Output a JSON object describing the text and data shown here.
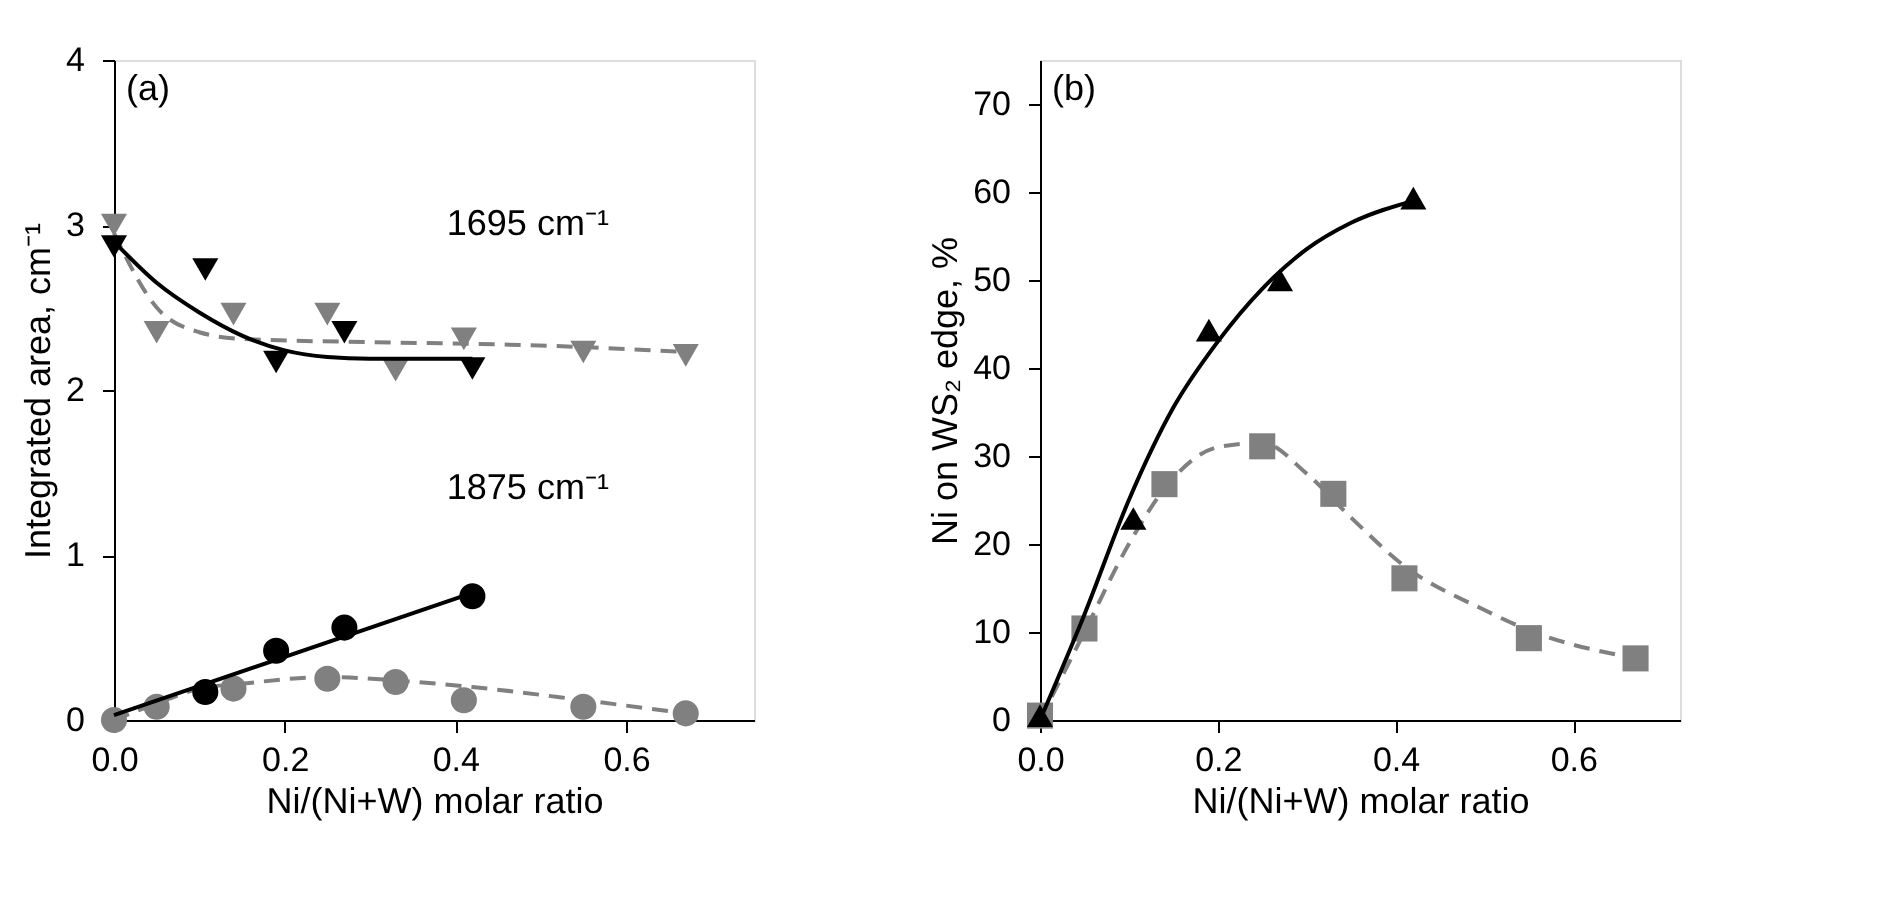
{
  "chart_data": [
    {
      "type": "scatter",
      "title": "(a)",
      "xlabel": "Ni/(Ni+W) molar ratio",
      "ylabel": "Integrated area, cm⁻¹",
      "xlim": [
        0,
        0.75
      ],
      "ylim": [
        0,
        4
      ],
      "xticks": [
        {
          "value": 0,
          "label": "0.0"
        },
        {
          "value": 0.2,
          "label": "0.2"
        },
        {
          "value": 0.4,
          "label": "0.4"
        },
        {
          "value": 0.6,
          "label": "0.6"
        }
      ],
      "yticks": [
        0,
        1,
        2,
        3,
        4
      ],
      "grid": false,
      "annotations": [
        "1695 cm⁻¹",
        "1875 cm⁻¹"
      ],
      "series": [
        {
          "type": "line",
          "line_style": "dashed",
          "marker": "none",
          "color": "#808080",
          "x": [
            0,
            0.05,
            0.1,
            0.15,
            0.3,
            0.42,
            0.55,
            0.67
          ],
          "values": [
            2.95,
            2.5,
            2.35,
            2.31,
            2.29,
            2.28,
            2.26,
            2.23
          ]
        },
        {
          "type": "line",
          "line_style": "dashed",
          "marker": "none",
          "color": "#808080",
          "x": [
            0,
            0.05,
            0.1,
            0.15,
            0.25,
            0.33,
            0.42,
            0.55,
            0.67
          ],
          "values": [
            0,
            0.1,
            0.19,
            0.22,
            0.26,
            0.24,
            0.2,
            0.12,
            0.04
          ]
        },
        {
          "marker": "triangle-down",
          "color": "#808080",
          "x": [
            0,
            0.05,
            0.14,
            0.25,
            0.33,
            0.41,
            0.55,
            0.67
          ],
          "values": [
            3.0,
            2.35,
            2.46,
            2.46,
            2.12,
            2.31,
            2.23,
            2.21
          ]
        },
        {
          "marker": "circle",
          "color": "#808080",
          "x": [
            0,
            0.05,
            0.14,
            0.25,
            0.33,
            0.41,
            0.55,
            0.67
          ],
          "values": [
            0,
            0.08,
            0.19,
            0.25,
            0.23,
            0.12,
            0.08,
            0.04
          ]
        },
        {
          "type": "line",
          "line_style": "solid",
          "marker": "none",
          "color": "#000000",
          "x": [
            0,
            0.05,
            0.1,
            0.15,
            0.2,
            0.25,
            0.3,
            0.42
          ],
          "values": [
            2.9,
            2.65,
            2.47,
            2.33,
            2.24,
            2.2,
            2.19,
            2.19
          ]
        },
        {
          "type": "line",
          "line_style": "solid",
          "marker": "none",
          "color": "#000000",
          "x": [
            0,
            0.42
          ],
          "values": [
            0.03,
            0.77
          ]
        },
        {
          "marker": "triangle-down",
          "color": "#000000",
          "x": [
            0,
            0.107,
            0.19,
            0.27,
            0.42
          ],
          "values": [
            2.87,
            2.73,
            2.17,
            2.35,
            2.13
          ]
        },
        {
          "marker": "circle",
          "color": "#000000",
          "x": [
            0.107,
            0.19,
            0.27,
            0.42
          ],
          "values": [
            0.17,
            0.42,
            0.56,
            0.75
          ]
        }
      ]
    },
    {
      "type": "scatter",
      "title": "(b)",
      "xlabel": "Ni/(Ni+W) molar ratio",
      "ylabel": "Ni on WS₂ edge, %",
      "xlim": [
        0,
        0.72
      ],
      "ylim": [
        0,
        75
      ],
      "xticks": [
        {
          "value": 0,
          "label": "0.0"
        },
        {
          "value": 0.2,
          "label": "0.2"
        },
        {
          "value": 0.4,
          "label": "0.4"
        },
        {
          "value": 0.6,
          "label": "0.6"
        }
      ],
      "yticks": [
        0,
        10,
        20,
        30,
        40,
        50,
        60,
        70
      ],
      "grid": false,
      "series": [
        {
          "type": "line",
          "line_style": "dashed",
          "marker": "none",
          "color": "#808080",
          "x": [
            0,
            0.05,
            0.1,
            0.15,
            0.2,
            0.25,
            0.3,
            0.35,
            0.41,
            0.5,
            0.55,
            0.67
          ],
          "values": [
            0,
            10,
            20,
            27.5,
            31,
            31.5,
            28,
            23,
            17.5,
            12.5,
            10.2,
            7
          ]
        },
        {
          "marker": "square",
          "color": "#808080",
          "x": [
            0,
            0.05,
            0.14,
            0.25,
            0.33,
            0.41,
            0.55,
            0.67
          ],
          "values": [
            0.5,
            10.4,
            26.8,
            31.1,
            25.7,
            16.1,
            9.3,
            7
          ]
        },
        {
          "type": "line",
          "line_style": "solid",
          "marker": "none",
          "color": "#000000",
          "x": [
            0,
            0.05,
            0.1,
            0.15,
            0.2,
            0.25,
            0.3,
            0.35,
            0.42
          ],
          "values": [
            0,
            12,
            25,
            35.5,
            43,
            49,
            53.5,
            56.5,
            59
          ]
        },
        {
          "marker": "triangle-up",
          "color": "#000000",
          "x": [
            0,
            0.105,
            0.19,
            0.27,
            0.42
          ],
          "values": [
            0.5,
            22.9,
            44.3,
            50,
            59.3
          ]
        }
      ]
    }
  ]
}
